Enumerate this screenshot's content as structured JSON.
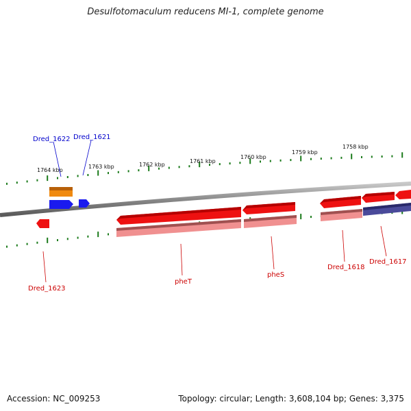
{
  "title": "Desulfotomaculum reducens MI-1, complete genome",
  "ticks": [
    "1764 kbp",
    "1763 kbp",
    "1762 kbp",
    "1761 kbp",
    "1760 kbp",
    "1759 kbp",
    "1758 kbp"
  ],
  "genes": {
    "dred_1622": "Dred_1622",
    "dred_1621": "Dred_1621",
    "dred_1623": "Dred_1623",
    "phet": "pheT",
    "phes": "pheS",
    "dred_1618": "Dred_1618",
    "dred_1617": "Dred_1617"
  },
  "footer": {
    "accession": "Accession: NC_009253",
    "topology": "Topology: circular; Length: 3,608,104 bp; Genes: 3,375"
  },
  "colors": {
    "backbone": "#8a8a8a",
    "tick": "#1a7a1a",
    "forward_gene": "#ee1111",
    "forward_gene_light": "#f08a8a",
    "blue_gene": "#1a1aee",
    "orange_gene": "#f08a10",
    "purple_gene": "#4a4a9a"
  }
}
